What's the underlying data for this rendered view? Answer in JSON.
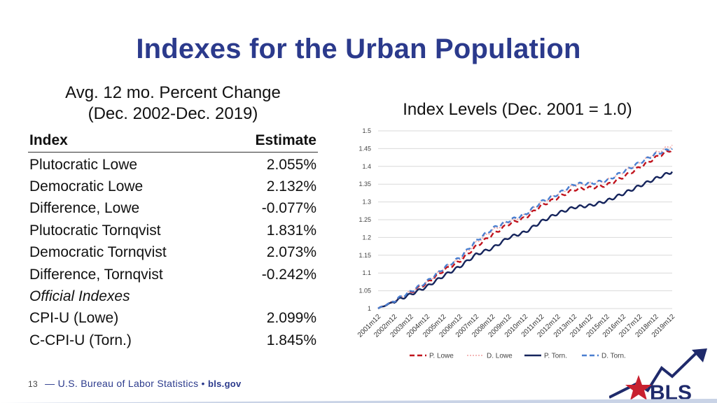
{
  "slide": {
    "title": "Indexes for the Urban Population",
    "table_heading_line1": "Avg. 12 mo. Percent Change",
    "table_heading_line2": "(Dec. 2002-Dec. 2019)",
    "footer_number": "13",
    "footer_text": "— U.S. Bureau of Labor Statistics •",
    "footer_site": "bls.gov",
    "logo_text": "BLS",
    "colors": {
      "title": "#2b3a8c",
      "footer": "#2b3a8c",
      "logo_red": "#c8202f",
      "logo_navy": "#1f2a6b"
    }
  },
  "table": {
    "header": {
      "index": "Index",
      "estimate": "Estimate"
    },
    "rows": [
      {
        "label": "Plutocratic Lowe",
        "value": "2.055%"
      },
      {
        "label": "Democratic Lowe",
        "value": "2.132%"
      },
      {
        "label": "Difference, Lowe",
        "value": "-0.077%"
      },
      {
        "label": "Plutocratic Tornqvist",
        "value": "1.831%"
      },
      {
        "label": "Democratic Tornqvist",
        "value": "2.073%"
      },
      {
        "label": "Difference, Tornqvist",
        "value": "-0.242%"
      },
      {
        "label": "Official Indexes",
        "value": ""
      },
      {
        "label": "CPI-U (Lowe)",
        "value": "2.099%"
      },
      {
        "label": "C-CPI-U (Torn.)",
        "value": "1.845%"
      }
    ]
  },
  "chart_data": {
    "type": "line",
    "title": "Index Levels (Dec. 2001 = 1.0)",
    "xlabel": "",
    "ylabel": "",
    "ylim": [
      1,
      1.5
    ],
    "yticks": [
      "1",
      "1.05",
      "1.1",
      "1.15",
      "1.2",
      "1.25",
      "1.3",
      "1.35",
      "1.4",
      "1.45",
      "1.5"
    ],
    "categories": [
      "2001m12",
      "2002m12",
      "2003m12",
      "2004m12",
      "2005m12",
      "2006m12",
      "2007m12",
      "2008m12",
      "2009m12",
      "2010m12",
      "2011m12",
      "2012m12",
      "2013m12",
      "2014m12",
      "2015m12",
      "2016m12",
      "2017m12",
      "2018m12",
      "2019m12"
    ],
    "legend_position": "bottom",
    "series": [
      {
        "name": "P. Lowe",
        "color": "#c0141e",
        "style": "dashed",
        "values": [
          1.0,
          1.022,
          1.046,
          1.072,
          1.107,
          1.133,
          1.175,
          1.208,
          1.238,
          1.255,
          1.29,
          1.312,
          1.335,
          1.34,
          1.347,
          1.37,
          1.397,
          1.425,
          1.448
        ]
      },
      {
        "name": "D. Lowe",
        "color": "#f0a0a0",
        "style": "dotted",
        "values": [
          1.0,
          1.023,
          1.048,
          1.075,
          1.112,
          1.14,
          1.185,
          1.22,
          1.245,
          1.263,
          1.3,
          1.322,
          1.347,
          1.352,
          1.36,
          1.384,
          1.41,
          1.438,
          1.46
        ]
      },
      {
        "name": "P. Torn.",
        "color": "#15245c",
        "style": "solid",
        "values": [
          1.0,
          1.02,
          1.04,
          1.062,
          1.092,
          1.118,
          1.152,
          1.17,
          1.2,
          1.215,
          1.245,
          1.268,
          1.285,
          1.29,
          1.303,
          1.323,
          1.345,
          1.366,
          1.385
        ]
      },
      {
        "name": "D. Torn.",
        "color": "#4a7fd0",
        "style": "dashed",
        "values": [
          1.0,
          1.022,
          1.048,
          1.076,
          1.113,
          1.143,
          1.19,
          1.225,
          1.247,
          1.265,
          1.3,
          1.322,
          1.35,
          1.352,
          1.36,
          1.385,
          1.41,
          1.435,
          1.45
        ]
      }
    ]
  }
}
